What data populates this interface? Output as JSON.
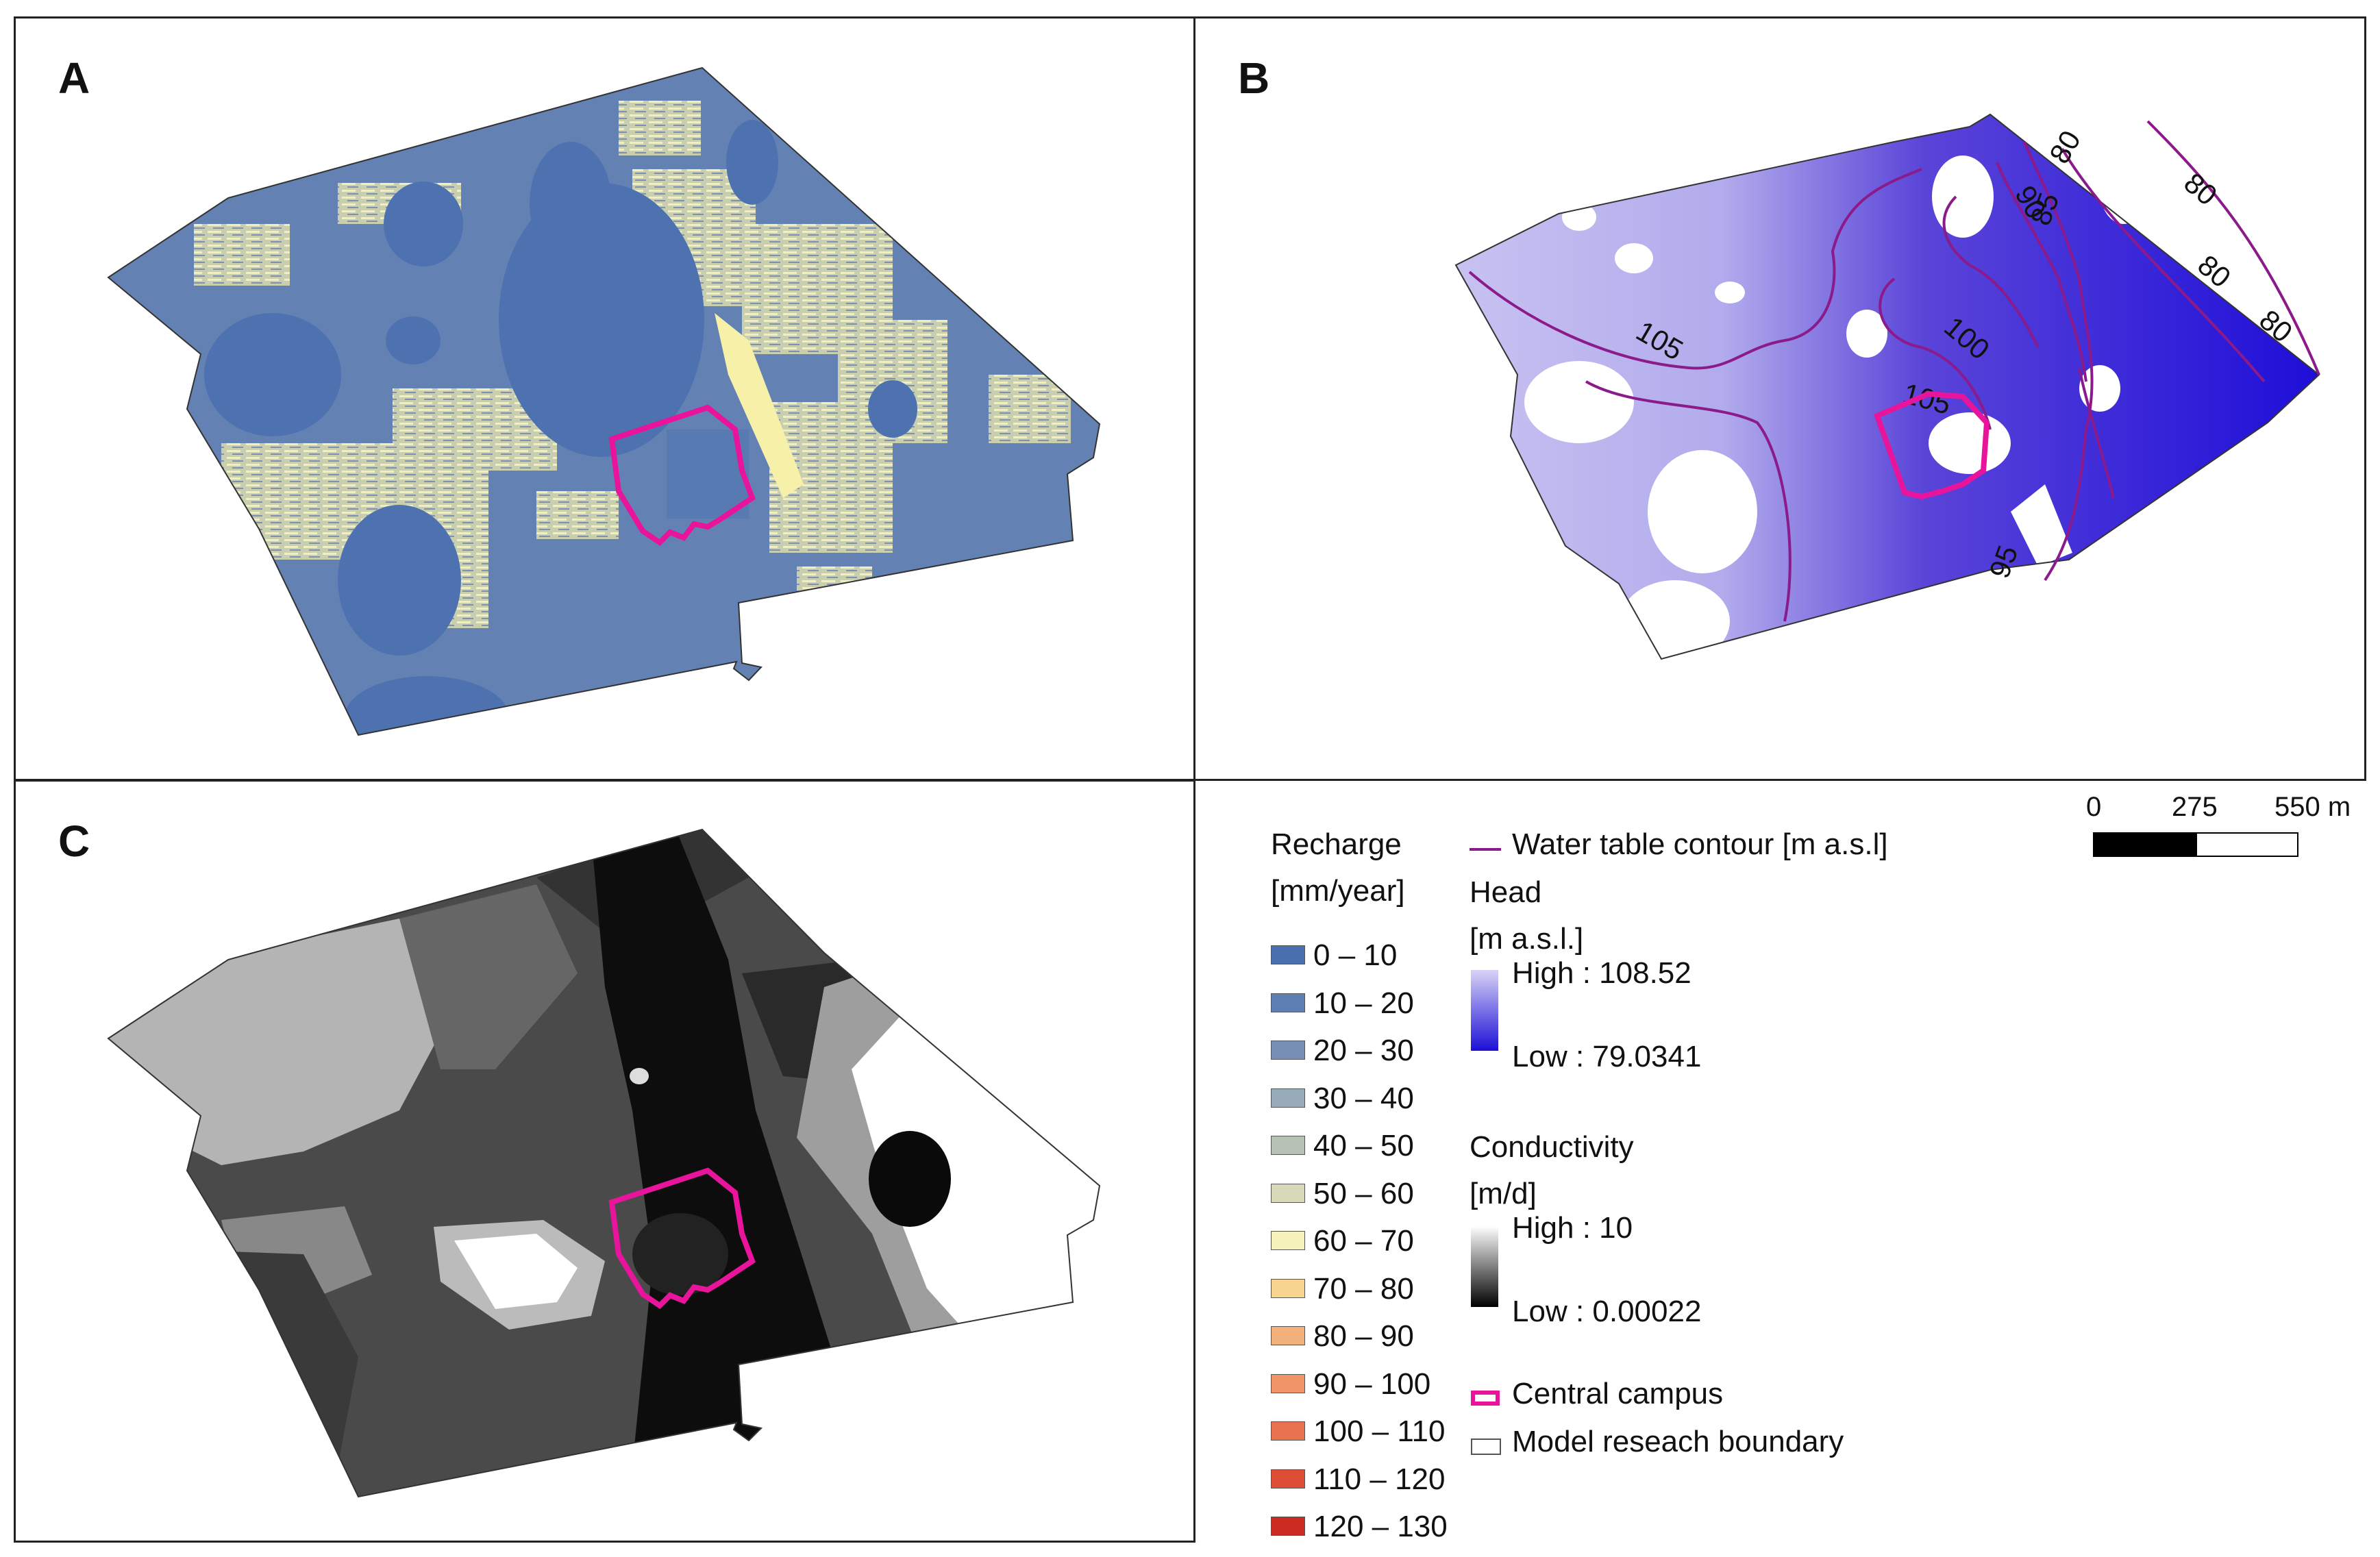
{
  "panels": {
    "a": {
      "letter": "A"
    },
    "b": {
      "letter": "B",
      "contour_labels": [
        "80",
        "80",
        "80",
        "80",
        "90",
        "85",
        "100",
        "105",
        "105",
        "95"
      ]
    },
    "c": {
      "letter": "C"
    }
  },
  "legend": {
    "recharge": {
      "title_line1": "Recharge",
      "title_line2": "[mm/year]",
      "classes": [
        {
          "label": "0 – 10",
          "color": "#4a6fae"
        },
        {
          "label": "10 – 20",
          "color": "#5d7fb3"
        },
        {
          "label": "20 – 30",
          "color": "#7890b5"
        },
        {
          "label": "30 – 40",
          "color": "#97aab8"
        },
        {
          "label": "40 – 50",
          "color": "#b5c2b4"
        },
        {
          "label": "50 – 60",
          "color": "#d6dab8"
        },
        {
          "label": "60 – 70",
          "color": "#f5f2ba"
        },
        {
          "label": "70 – 80",
          "color": "#f7d58f"
        },
        {
          "label": "80 – 90",
          "color": "#f2b07a"
        },
        {
          "label": "90 – 100",
          "color": "#ee9466"
        },
        {
          "label": "100 – 110",
          "color": "#e87350"
        },
        {
          "label": "110 – 120",
          "color": "#de4e36"
        },
        {
          "label": "120 – 130",
          "color": "#cc2b22"
        }
      ]
    },
    "water_table": {
      "label": "Water table contour [m a.s.l]",
      "color": "#8b1a8b"
    },
    "head": {
      "title_line1": "Head",
      "title_line2": "[m a.s.l.]",
      "high": "High : 108.52",
      "low": "Low : 79.0341",
      "high_color": "#d8d4f6",
      "low_color": "#1c0fd6"
    },
    "conductivity": {
      "title_line1": "Conductivity",
      "title_line2": "[m/d]",
      "high": "High : 10",
      "low": "Low : 0.00022"
    },
    "central_campus": {
      "label": "Central campus",
      "color": "#e8149b"
    },
    "model_boundary": {
      "label": "Model reseach boundary"
    }
  },
  "scale_bar": {
    "labels": [
      "0",
      "275",
      "550 m"
    ]
  }
}
